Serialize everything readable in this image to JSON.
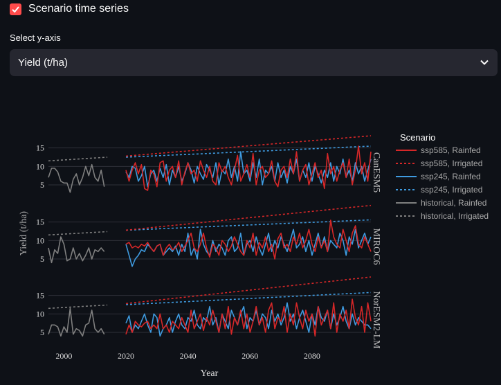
{
  "checkbox": {
    "label": "Scenario time series",
    "checked": true
  },
  "select": {
    "label": "Select y-axis",
    "value": "Yield (t/ha)",
    "icon": "chevron-down-icon"
  },
  "colors": {
    "accent": "#ff4b4b",
    "ssp585": "#d62728",
    "ssp245": "#3f9be0",
    "historical": "#7f7f7f",
    "background": "#0e1117",
    "select_bg": "#262730"
  },
  "chart_data": {
    "type": "line",
    "title": "",
    "xlabel": "Year",
    "ylabel": "Yield (t/ha)",
    "xlim": [
      1995,
      2099
    ],
    "x_ticks": [
      2000,
      2020,
      2040,
      2060,
      2080
    ],
    "y_ticks": [
      5,
      10,
      15
    ],
    "ylim": [
      2,
      17
    ],
    "legend_title": "Scenario",
    "legend_position": "right",
    "legend": [
      {
        "name": "ssp585, Rainfed",
        "color": "#d62728",
        "dash": "solid"
      },
      {
        "name": "ssp585, Irrigated",
        "color": "#d62728",
        "dash": "dot"
      },
      {
        "name": "ssp245, Rainfed",
        "color": "#3f9be0",
        "dash": "solid"
      },
      {
        "name": "ssp245, Irrigated",
        "color": "#3f9be0",
        "dash": "dot"
      },
      {
        "name": "historical, Rainfed",
        "color": "#7f7f7f",
        "dash": "solid"
      },
      {
        "name": "historical, Irrigated",
        "color": "#7f7f7f",
        "dash": "dot"
      }
    ],
    "facets": [
      {
        "model": "CanESM5",
        "historical_irrigated": {
          "x_start": 1995,
          "x_end": 2014,
          "y_start": 11.5,
          "y_end": 12.5
        },
        "historical_rainfed": {
          "x_start": 1995,
          "values": [
            7,
            9.5,
            9.5,
            8.5,
            6,
            5.5,
            5.5,
            3,
            6.5,
            8,
            5,
            7,
            10,
            7.5,
            10.5,
            7,
            6,
            9,
            4.5
          ]
        },
        "ssp585_irrigated": {
          "x_start": 2020,
          "x_end": 2099,
          "y_start": 12.8,
          "y_end": 18.3
        },
        "ssp245_irrigated": {
          "x_start": 2020,
          "x_end": 2099,
          "y_start": 12.5,
          "y_end": 15.5
        },
        "ssp585_rainfed": {
          "x_start": 2020,
          "values": [
            9,
            6,
            9,
            11,
            8,
            10.5,
            4,
            3.5,
            9,
            8,
            4.5,
            11,
            11.5,
            6,
            9,
            10,
            7,
            11.5,
            5,
            8.5,
            11,
            8,
            9,
            6,
            11.5,
            9,
            7,
            10,
            6,
            5,
            11,
            8.5,
            10,
            7,
            5,
            9,
            13,
            6,
            8,
            10.5,
            7,
            13.5,
            5,
            9,
            10,
            7,
            8,
            11.5,
            6,
            4.5,
            9,
            10,
            7,
            12,
            8,
            14,
            6,
            9,
            10.5,
            5,
            8,
            11,
            7,
            9,
            4,
            13.5,
            8,
            10,
            6,
            9,
            11,
            7,
            12,
            5,
            9,
            15.5,
            8,
            11,
            6,
            14
          ]
        },
        "ssp245_rainfed": {
          "x_start": 2020,
          "values": [
            8.5,
            7,
            10,
            9.5,
            6,
            7.5,
            10,
            4.5,
            8,
            9,
            6,
            9.5,
            7,
            10.5,
            5,
            9,
            7,
            10,
            6,
            8,
            11,
            9,
            5.5,
            10,
            8,
            6.5,
            10.5,
            9,
            7,
            11,
            5,
            9,
            8,
            12,
            7,
            10,
            6,
            14,
            8,
            9,
            6,
            11,
            7,
            12,
            5,
            9,
            8,
            10,
            6,
            11,
            7,
            9,
            5.5,
            10,
            8,
            12,
            6,
            9,
            7,
            11,
            6,
            10,
            8,
            5.5,
            9,
            7,
            11,
            6,
            10,
            8,
            12,
            7,
            9,
            6,
            11,
            8,
            10,
            6,
            9,
            12
          ]
        }
      },
      {
        "model": "MIROC6",
        "historical_irrigated": {
          "x_start": 1995,
          "x_end": 2014,
          "y_start": 11.5,
          "y_end": 12.4
        },
        "historical_rainfed": {
          "x_start": 1995,
          "values": [
            8,
            4,
            7.5,
            6.5,
            11,
            9,
            4.5,
            5,
            8,
            5,
            6.5,
            4.5,
            6,
            8,
            5,
            7.5,
            7,
            8,
            7
          ]
        },
        "ssp585_irrigated": {
          "x_start": 2020,
          "x_end": 2099,
          "y_start": 12.8,
          "y_end": 19.5
        },
        "ssp245_irrigated": {
          "x_start": 2020,
          "x_end": 2099,
          "y_start": 12.8,
          "y_end": 15.6
        },
        "ssp585_rainfed": {
          "x_start": 2020,
          "values": [
            9,
            9.5,
            8,
            8.5,
            8,
            9,
            8.5,
            9.5,
            8,
            7,
            8.5,
            9,
            6,
            8,
            9,
            7.5,
            8,
            9.5,
            7,
            8.5,
            10,
            12,
            8,
            7,
            9,
            12,
            8,
            5.5,
            9,
            8,
            6,
            10,
            9,
            7,
            8.5,
            11,
            9,
            7,
            6,
            10,
            8,
            12,
            6,
            9.5,
            8,
            11,
            7,
            9,
            5,
            10.5,
            12,
            8,
            9,
            7,
            11,
            9,
            12,
            8,
            10,
            13,
            9,
            7,
            11,
            8,
            10,
            7,
            15.5,
            11,
            9,
            8,
            13,
            10,
            7,
            12,
            14,
            9,
            8,
            11,
            9,
            7
          ]
        },
        "ssp245_rainfed": {
          "x_start": 2020,
          "values": [
            9,
            6,
            3,
            5,
            6,
            7.5,
            7,
            9,
            8,
            7,
            8.5,
            9,
            6,
            7,
            8,
            7,
            8.5,
            6,
            9,
            7,
            12,
            6,
            8,
            5,
            13,
            9,
            7,
            6,
            10,
            7,
            9,
            8,
            6,
            10,
            11,
            7,
            8,
            12,
            6,
            9,
            10,
            7,
            11,
            8,
            6,
            9,
            12,
            7,
            10,
            8,
            11,
            9,
            7,
            10,
            13,
            8,
            9,
            11,
            7,
            10,
            6,
            9,
            12,
            8,
            11,
            7,
            10,
            9,
            8,
            12,
            10,
            6,
            11,
            9,
            13,
            8,
            10,
            12,
            9,
            11
          ]
        }
      },
      {
        "model": "NorESM2-LM",
        "historical_irrigated": {
          "x_start": 1995,
          "x_end": 2014,
          "y_start": 11.5,
          "y_end": 12.4
        },
        "historical_rainfed": {
          "x_start": 1995,
          "values": [
            4.5,
            7,
            7,
            6.5,
            4,
            6.5,
            5,
            11.5,
            4.5,
            6,
            5.5,
            4,
            7,
            7.5,
            11,
            6,
            5,
            6,
            4.5
          ]
        },
        "ssp585_irrigated": {
          "x_start": 2020,
          "x_end": 2099,
          "y_start": 12.8,
          "y_end": 20
        },
        "ssp245_irrigated": {
          "x_start": 2020,
          "x_end": 2099,
          "y_start": 12.5,
          "y_end": 15.8
        },
        "ssp585_rainfed": {
          "x_start": 2020,
          "values": [
            4.5,
            7,
            5,
            8,
            7,
            6.5,
            7.5,
            8,
            6,
            7,
            6,
            10,
            6,
            7,
            5,
            8,
            7,
            6,
            9,
            7,
            5,
            11,
            6,
            8,
            10,
            5.5,
            9,
            7,
            11,
            8,
            5,
            10,
            6,
            12,
            4.5,
            9,
            7,
            11,
            6,
            10,
            5,
            8,
            12,
            7,
            9,
            5,
            11,
            13,
            6,
            9,
            8,
            12,
            5,
            10,
            7,
            13,
            9,
            6,
            11,
            8,
            10,
            4,
            12,
            7,
            9,
            11,
            6,
            13,
            5,
            10,
            8,
            11,
            6,
            14,
            9,
            7,
            12,
            5,
            13,
            8
          ]
        },
        "ssp245_rainfed": {
          "x_start": 2020,
          "values": [
            7.5,
            9.5,
            5,
            7,
            6,
            8,
            10,
            7,
            5,
            10,
            9,
            4,
            6,
            7,
            9,
            5,
            8,
            10,
            7,
            6,
            9,
            8,
            11,
            7,
            6,
            9,
            8,
            12,
            7,
            9,
            5,
            10,
            8,
            6,
            11,
            9,
            7,
            10,
            12,
            6,
            9,
            8,
            11,
            7,
            10,
            9,
            6,
            11,
            8,
            10,
            7,
            9,
            13,
            8,
            10,
            6,
            9,
            11,
            8,
            5,
            10,
            7,
            12,
            9,
            8,
            11,
            6,
            10,
            7,
            9,
            12,
            8,
            6,
            10,
            7,
            9,
            8,
            7,
            7,
            6
          ]
        }
      }
    ]
  }
}
